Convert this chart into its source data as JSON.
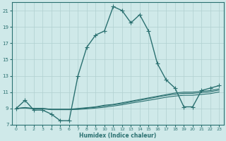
{
  "xlabel": "Humidex (Indice chaleur)",
  "ylabel": "",
  "background_color": "#cfe9e9",
  "grid_color": "#b0d0d0",
  "line_color": "#2a7070",
  "xlim": [
    -0.5,
    23.5
  ],
  "ylim": [
    7,
    22
  ],
  "xticks": [
    0,
    1,
    2,
    3,
    4,
    5,
    6,
    7,
    8,
    9,
    10,
    11,
    12,
    13,
    14,
    15,
    16,
    17,
    18,
    19,
    20,
    21,
    22,
    23
  ],
  "yticks": [
    7,
    9,
    11,
    13,
    15,
    17,
    19,
    21
  ],
  "main_line": {
    "x": [
      0,
      1,
      2,
      3,
      4,
      5,
      6,
      7,
      8,
      9,
      10,
      11,
      12,
      13,
      14,
      15,
      16,
      17,
      18,
      19,
      20,
      21,
      22,
      23
    ],
    "y": [
      9,
      10,
      8.8,
      8.8,
      8.3,
      7.5,
      7.5,
      13,
      16.5,
      18,
      18.5,
      21.5,
      21.0,
      19.5,
      20.5,
      18.5,
      14.5,
      12.5,
      11.5,
      9.2,
      9.2,
      11.2,
      11.5,
      11.8
    ]
  },
  "flat_lines": [
    [
      9.0,
      9.1,
      9.0,
      9.0,
      8.9,
      8.9,
      8.9,
      9.0,
      9.1,
      9.2,
      9.4,
      9.5,
      9.7,
      9.9,
      10.1,
      10.3,
      10.5,
      10.7,
      10.9,
      11.0,
      11.0,
      11.1,
      11.2,
      11.4
    ],
    [
      9.0,
      9.1,
      9.0,
      9.0,
      8.9,
      8.9,
      8.9,
      8.95,
      9.05,
      9.15,
      9.3,
      9.45,
      9.6,
      9.8,
      10.0,
      10.2,
      10.4,
      10.6,
      10.75,
      10.85,
      10.85,
      10.95,
      11.05,
      11.25
    ],
    [
      9.0,
      9.05,
      8.95,
      8.95,
      8.85,
      8.85,
      8.85,
      8.88,
      8.95,
      9.05,
      9.15,
      9.3,
      9.45,
      9.65,
      9.82,
      10.0,
      10.18,
      10.38,
      10.52,
      10.62,
      10.62,
      10.72,
      10.82,
      11.02
    ]
  ],
  "marker": "+",
  "markersize": 4,
  "linewidth": 1.0,
  "flat_linewidth": 0.8
}
